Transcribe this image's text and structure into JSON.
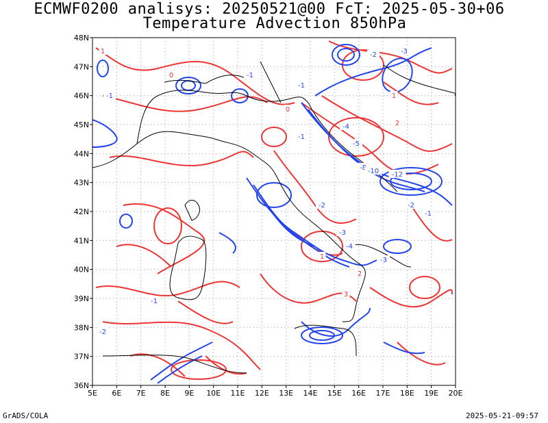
{
  "title": {
    "line1": "ECMWF0200 analisys: 20250521@00 FcT: 2025-05-30+06",
    "line2": "Temperature Advection 850hPa"
  },
  "footer": {
    "left": "GrADS/COLA",
    "right": "2025-05-21-09:57"
  },
  "map": {
    "lon_labels": [
      "5E",
      "6E",
      "7E",
      "8E",
      "9E",
      "10E",
      "11E",
      "12E",
      "13E",
      "14E",
      "15E",
      "16E",
      "17E",
      "18E",
      "19E",
      "20E"
    ],
    "lat_labels": [
      "36N",
      "37N",
      "38N",
      "39N",
      "40N",
      "41N",
      "42N",
      "43N",
      "44N",
      "45N",
      "46N",
      "47N",
      "48N"
    ],
    "lon_range": [
      5,
      20
    ],
    "lat_range": [
      36,
      48
    ],
    "grid": "dotted",
    "colors": {
      "warm_advection": "#ee3333",
      "cold_advection": "#2244ee",
      "coastline": "#000000",
      "grid": "#999999"
    },
    "contour_labels": [
      "1",
      "-1",
      "0",
      "-1",
      "-2",
      "-3",
      "-4",
      "-5",
      "-8",
      "-10",
      "-12",
      "2",
      "-1",
      "0",
      "-1",
      "-2",
      "-3",
      "-4",
      "-3",
      "-2",
      "-1",
      "1",
      "2",
      "3",
      "-1",
      "-2",
      "1"
    ]
  }
}
